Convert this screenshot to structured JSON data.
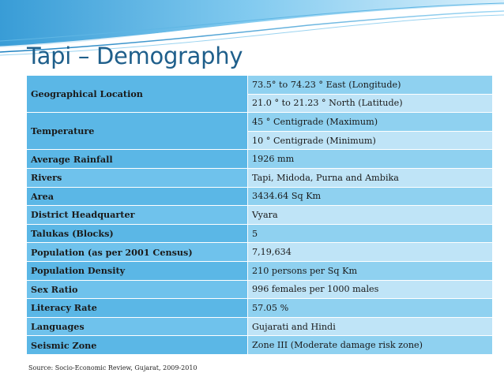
{
  "colors": {
    "title": "#1f5f8b",
    "label_cell": "#5bb7e6",
    "value_cell": "#8fd1f0",
    "value_cell_alt": "#bfe4f7",
    "swoosh": "#3fa6dc"
  },
  "slide": {
    "title": "Tapi – Demography",
    "source": "Source: Socio-Economic Review, Gujarat, 2009-2010"
  },
  "rows": [
    {
      "label": "Geographical Location",
      "values": [
        "73.5° to 74.23 ° East (Longitude)",
        "21.0 ° to 21.23 ° North (Latitude)"
      ]
    },
    {
      "label": "Temperature",
      "values": [
        "45 ° Centigrade (Maximum)",
        "10 ° Centigrade (Minimum)"
      ]
    },
    {
      "label": "Average Rainfall",
      "values": [
        "1926 mm"
      ]
    },
    {
      "label": "Rivers",
      "values": [
        "Tapi, Midoda, Purna and Ambika"
      ]
    },
    {
      "label": "Area",
      "values": [
        "3434.64 Sq Km"
      ]
    },
    {
      "label": "District Headquarter",
      "values": [
        "Vyara"
      ]
    },
    {
      "label": "Talukas (Blocks)",
      "values": [
        "5"
      ]
    },
    {
      "label": "Population (as per 2001 Census)",
      "values": [
        "7,19,634"
      ]
    },
    {
      "label": "Population Density",
      "values": [
        "210 persons per Sq Km"
      ]
    },
    {
      "label": "Sex Ratio",
      "values": [
        "996 females per 1000 males"
      ]
    },
    {
      "label": "Literacy Rate",
      "values": [
        "57.05 %"
      ]
    },
    {
      "label": "Languages",
      "values": [
        "Gujarati and Hindi"
      ]
    },
    {
      "label": "Seismic Zone",
      "values": [
        "Zone III (Moderate damage risk zone)"
      ]
    }
  ]
}
